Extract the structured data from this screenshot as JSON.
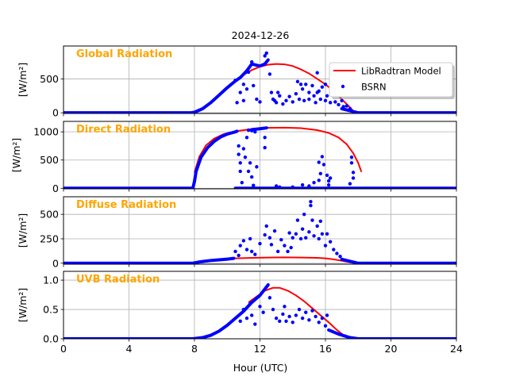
{
  "chart_data": {
    "type": "line",
    "title": "2024-12-26",
    "xlabel": "Hour (UTC)",
    "xlim": [
      0,
      24
    ],
    "xticks": [
      0,
      4,
      8,
      12,
      16,
      20,
      24
    ],
    "grid": true,
    "legend": {
      "placement": "top-right",
      "panel": 0,
      "entries": [
        "LibRadtran Model",
        "BSRN"
      ]
    },
    "colors": {
      "model": "#ff0000",
      "bsrn": "#0000ff",
      "panel_title": "#ffa500"
    },
    "panels": [
      {
        "title": "Global Radiation",
        "ylabel": "[W/m²]",
        "ylim": [
          -10,
          985
        ],
        "yticks": [
          0,
          500
        ],
        "model": [
          [
            10.5,
            480
          ],
          [
            11,
            560
          ],
          [
            11.5,
            630
          ],
          [
            12,
            680
          ],
          [
            12.5,
            710
          ],
          [
            13,
            720
          ],
          [
            13.5,
            715
          ],
          [
            14,
            690
          ],
          [
            14.5,
            640
          ],
          [
            15,
            580
          ],
          [
            15.5,
            500
          ],
          [
            16,
            420
          ],
          [
            16.5,
            320
          ],
          [
            17,
            200
          ],
          [
            17.5,
            80
          ],
          [
            17.8,
            0
          ]
        ],
        "bsrn_trace": [
          [
            0,
            0
          ],
          [
            7.8,
            0
          ],
          [
            8,
            8
          ],
          [
            8.5,
            60
          ],
          [
            9,
            150
          ],
          [
            9.5,
            260
          ],
          [
            10,
            370
          ],
          [
            10.5,
            470
          ],
          [
            10.8,
            520
          ],
          [
            11.2,
            620
          ],
          [
            11.5,
            720
          ],
          [
            12,
            690
          ],
          [
            12.3,
            720
          ],
          [
            12.5,
            780
          ]
        ],
        "bsrn_trace_end": [
          [
            17,
            60
          ],
          [
            17.5,
            30
          ],
          [
            18,
            0
          ],
          [
            24,
            0
          ]
        ],
        "bsrn_scatter": [
          [
            10.5,
            480
          ],
          [
            10.6,
            150
          ],
          [
            10.8,
            300
          ],
          [
            11,
            420
          ],
          [
            11,
            180
          ],
          [
            11.2,
            350
          ],
          [
            11.3,
            600
          ],
          [
            11.5,
            750
          ],
          [
            11.6,
            400
          ],
          [
            11.8,
            200
          ],
          [
            12,
            160
          ],
          [
            12.3,
            840
          ],
          [
            12.4,
            880
          ],
          [
            12.6,
            570
          ],
          [
            12.7,
            300
          ],
          [
            12.8,
            200
          ],
          [
            12.9,
            180
          ],
          [
            13,
            150
          ],
          [
            13.2,
            250
          ],
          [
            13.4,
            130
          ],
          [
            13.6,
            180
          ],
          [
            13.8,
            240
          ],
          [
            14,
            160
          ],
          [
            14.2,
            280
          ],
          [
            14.4,
            200
          ],
          [
            14.6,
            350
          ],
          [
            14.7,
            180
          ],
          [
            14.8,
            420
          ],
          [
            15,
            300
          ],
          [
            15,
            200
          ],
          [
            15.2,
            400
          ],
          [
            15.3,
            250
          ],
          [
            15.4,
            150
          ],
          [
            15.5,
            300
          ],
          [
            15.6,
            320
          ],
          [
            15.7,
            200
          ],
          [
            15.8,
            380
          ],
          [
            16,
            180
          ],
          [
            16,
            420
          ],
          [
            16.1,
            250
          ],
          [
            16.3,
            150
          ],
          [
            16.4,
            260
          ],
          [
            16.6,
            160
          ],
          [
            16.8,
            120
          ],
          [
            17,
            180
          ],
          [
            17.1,
            90
          ],
          [
            17.3,
            100
          ],
          [
            17.5,
            60
          ],
          [
            14.3,
            460
          ],
          [
            14.5,
            420
          ],
          [
            15.5,
            590
          ],
          [
            13.1,
            300
          ]
        ]
      },
      {
        "title": "Direct Radiation",
        "ylabel": "[W/m²]",
        "ylim": [
          -10,
          1185
        ],
        "yticks": [
          0,
          500,
          1000
        ],
        "model": [
          [
            8,
            280
          ],
          [
            8.3,
            560
          ],
          [
            8.7,
            760
          ],
          [
            9.2,
            880
          ],
          [
            9.8,
            960
          ],
          [
            10.5,
            1010
          ],
          [
            11.5,
            1050
          ],
          [
            12.5,
            1070
          ],
          [
            13.5,
            1075
          ],
          [
            14.5,
            1065
          ],
          [
            15.5,
            1030
          ],
          [
            16.2,
            980
          ],
          [
            16.8,
            900
          ],
          [
            17.3,
            780
          ],
          [
            17.7,
            620
          ],
          [
            18,
            450
          ],
          [
            18.2,
            290
          ]
        ],
        "bsrn_trace": [
          [
            0,
            0
          ],
          [
            7.9,
            0
          ],
          [
            8,
            120
          ],
          [
            8.1,
            300
          ],
          [
            8.4,
            550
          ],
          [
            8.8,
            720
          ],
          [
            9.2,
            830
          ],
          [
            9.6,
            910
          ],
          [
            10,
            960
          ],
          [
            10.5,
            1000
          ],
          [
            10.6,
            1010
          ]
        ],
        "bsrn_trace_mid": [
          [
            11.5,
            1040
          ],
          [
            12,
            1055
          ],
          [
            12.4,
            1070
          ]
        ],
        "bsrn_trace_end": [
          [
            10.5,
            0
          ],
          [
            24,
            0
          ]
        ],
        "bsrn_scatter": [
          [
            10.7,
            750
          ],
          [
            10.7,
            600
          ],
          [
            10.8,
            450
          ],
          [
            10.8,
            300
          ],
          [
            10.9,
            100
          ],
          [
            11,
            700
          ],
          [
            11.1,
            550
          ],
          [
            11.2,
            900
          ],
          [
            11.3,
            300
          ],
          [
            11.4,
            450
          ],
          [
            11.5,
            200
          ],
          [
            11.6,
            50
          ],
          [
            11.7,
            1000
          ],
          [
            11.8,
            380
          ],
          [
            11.3,
            1030
          ],
          [
            11.5,
            1020
          ],
          [
            12.3,
            900
          ],
          [
            12.3,
            720
          ],
          [
            13,
            40
          ],
          [
            13.2,
            20
          ],
          [
            14,
            20
          ],
          [
            14.6,
            60
          ],
          [
            15,
            40
          ],
          [
            15.3,
            100
          ],
          [
            15.6,
            140
          ],
          [
            15.6,
            460
          ],
          [
            15.8,
            560
          ],
          [
            15.9,
            420
          ],
          [
            15.7,
            260
          ],
          [
            16.1,
            230
          ],
          [
            16.2,
            130
          ],
          [
            16.3,
            180
          ],
          [
            16.2,
            60
          ],
          [
            17.6,
            450
          ],
          [
            17.6,
            550
          ],
          [
            17.7,
            280
          ],
          [
            17.7,
            180
          ],
          [
            17.5,
            80
          ]
        ]
      },
      {
        "title": "Diffuse Radiation",
        "ylabel": "[W/m²]",
        "ylim": [
          -10,
          680
        ],
        "yticks": [
          0,
          250,
          500
        ],
        "model": [
          [
            10,
            40
          ],
          [
            10.5,
            50
          ],
          [
            11.5,
            55
          ],
          [
            12.5,
            58
          ],
          [
            13.5,
            60
          ],
          [
            14.5,
            58
          ],
          [
            15.5,
            55
          ],
          [
            16,
            50
          ],
          [
            16.5,
            40
          ],
          [
            17,
            25
          ],
          [
            17.5,
            10
          ],
          [
            17.8,
            0
          ]
        ],
        "bsrn_trace": [
          [
            0,
            0
          ],
          [
            7.9,
            0
          ],
          [
            8.2,
            10
          ],
          [
            8.6,
            20
          ],
          [
            9,
            28
          ],
          [
            9.5,
            35
          ],
          [
            10,
            42
          ],
          [
            10.4,
            50
          ]
        ],
        "bsrn_trace_end": [
          [
            17,
            40
          ],
          [
            17.5,
            20
          ],
          [
            18,
            0
          ],
          [
            24,
            0
          ]
        ],
        "bsrn_scatter": [
          [
            10.5,
            120
          ],
          [
            10.7,
            80
          ],
          [
            10.8,
            180
          ],
          [
            11,
            230
          ],
          [
            11.2,
            140
          ],
          [
            11.4,
            250
          ],
          [
            11.5,
            120
          ],
          [
            11.7,
            90
          ],
          [
            12,
            200
          ],
          [
            12.3,
            290
          ],
          [
            12.4,
            380
          ],
          [
            12.6,
            260
          ],
          [
            12.7,
            190
          ],
          [
            12.9,
            330
          ],
          [
            13.1,
            120
          ],
          [
            13.3,
            240
          ],
          [
            13.5,
            180
          ],
          [
            13.7,
            120
          ],
          [
            13.9,
            160
          ],
          [
            14,
            260
          ],
          [
            14.2,
            300
          ],
          [
            14.3,
            440
          ],
          [
            14.5,
            250
          ],
          [
            14.6,
            350
          ],
          [
            14.7,
            500
          ],
          [
            14.8,
            260
          ],
          [
            15,
            320
          ],
          [
            15.1,
            590
          ],
          [
            15.2,
            440
          ],
          [
            15.3,
            280
          ],
          [
            15.5,
            380
          ],
          [
            15.6,
            250
          ],
          [
            15.7,
            430
          ],
          [
            15.8,
            300
          ],
          [
            16,
            180
          ],
          [
            16.1,
            300
          ],
          [
            16.3,
            220
          ],
          [
            16.5,
            140
          ],
          [
            16.7,
            100
          ],
          [
            16.9,
            70
          ],
          [
            15.1,
            630
          ],
          [
            13.8,
            310
          ]
        ]
      },
      {
        "title": "UVB Radiation",
        "ylabel": "[W/m²]",
        "ylim": [
          0,
          1.15
        ],
        "yticks": [
          0.0,
          0.5,
          1.0
        ],
        "ytick_labels": [
          "0.0",
          "0.5",
          "1.0"
        ],
        "model": [
          [
            11.3,
            0.62
          ],
          [
            11.8,
            0.72
          ],
          [
            12.3,
            0.82
          ],
          [
            12.8,
            0.87
          ],
          [
            13.2,
            0.87
          ],
          [
            13.7,
            0.82
          ],
          [
            14.2,
            0.74
          ],
          [
            14.7,
            0.64
          ],
          [
            15.2,
            0.52
          ],
          [
            15.7,
            0.4
          ],
          [
            16.2,
            0.28
          ],
          [
            16.7,
            0.15
          ],
          [
            17.2,
            0.04
          ],
          [
            17.5,
            0
          ]
        ],
        "bsrn_trace": [
          [
            0,
            0
          ],
          [
            7.9,
            0
          ],
          [
            8.5,
            0.02
          ],
          [
            9,
            0.06
          ],
          [
            9.5,
            0.13
          ],
          [
            10,
            0.23
          ],
          [
            10.5,
            0.35
          ],
          [
            11,
            0.47
          ],
          [
            11.5,
            0.62
          ],
          [
            12,
            0.74
          ],
          [
            12.5,
            0.92
          ]
        ],
        "bsrn_trace_end": [
          [
            16.2,
            0.15
          ],
          [
            16.8,
            0.08
          ],
          [
            17.5,
            0.02
          ],
          [
            18,
            0
          ],
          [
            24,
            0
          ]
        ],
        "bsrn_scatter": [
          [
            10.8,
            0.3
          ],
          [
            11,
            0.5
          ],
          [
            11.2,
            0.35
          ],
          [
            11.4,
            0.6
          ],
          [
            11.5,
            0.4
          ],
          [
            11.7,
            0.25
          ],
          [
            12,
            0.55
          ],
          [
            12.2,
            0.45
          ],
          [
            12.6,
            0.7
          ],
          [
            12.8,
            0.5
          ],
          [
            13,
            0.35
          ],
          [
            13.2,
            0.3
          ],
          [
            13.4,
            0.42
          ],
          [
            13.6,
            0.3
          ],
          [
            13.8,
            0.38
          ],
          [
            14,
            0.28
          ],
          [
            14.2,
            0.4
          ],
          [
            14.4,
            0.5
          ],
          [
            14.6,
            0.35
          ],
          [
            14.8,
            0.45
          ],
          [
            15,
            0.32
          ],
          [
            15.2,
            0.48
          ],
          [
            15.4,
            0.38
          ],
          [
            15.6,
            0.28
          ],
          [
            15.8,
            0.35
          ],
          [
            16,
            0.22
          ],
          [
            16.1,
            0.4
          ],
          [
            13.5,
            0.55
          ]
        ]
      }
    ]
  }
}
